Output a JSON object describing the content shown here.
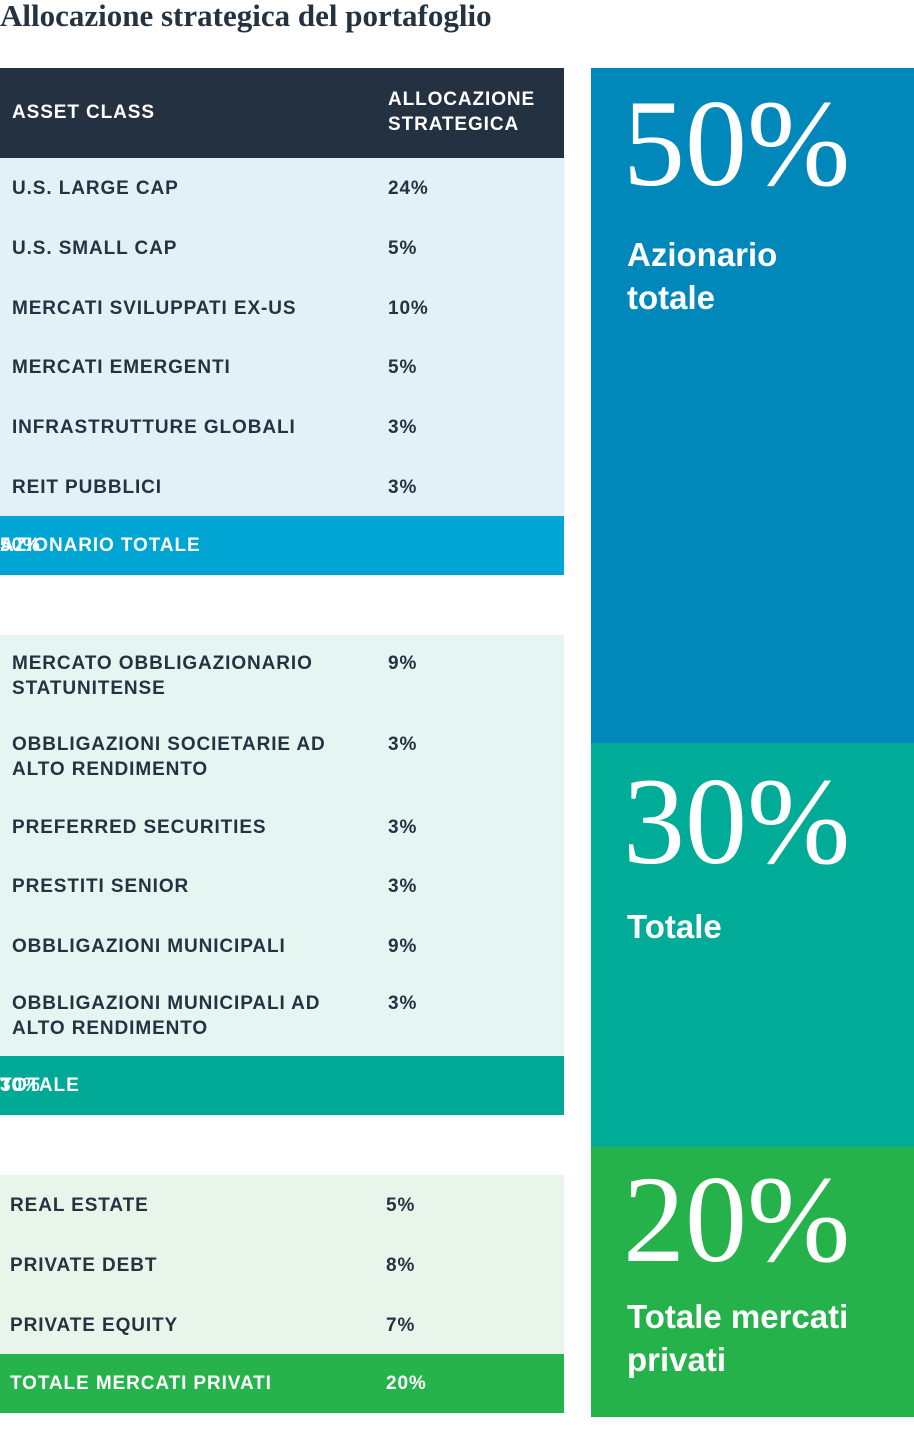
{
  "title": "Allocazione strategica del portafoglio",
  "header": {
    "col1": "ASSET CLASS",
    "col2": "ALLOCAZIONE\nSTRATEGICA"
  },
  "groups": [
    {
      "rows": [
        {
          "name": "U.S. LARGE CAP",
          "value": "24%"
        },
        {
          "name": "U.S. SMALL CAP",
          "value": "5%"
        },
        {
          "name": "MERCATI SVILUPPATI EX-US",
          "value": "10%"
        },
        {
          "name": "MERCATI EMERGENTI",
          "value": "5%"
        },
        {
          "name": "INFRASTRUTTURE GLOBALI",
          "value": "3%"
        },
        {
          "name": "REIT PUBBLICI",
          "value": "3%"
        }
      ],
      "total": {
        "name": "AZIONARIO TOTALE",
        "value": "50%"
      }
    },
    {
      "rows": [
        {
          "name": "MERCATO OBBLIGAZIONARIO\nSTATUNITENSE",
          "value": "9%"
        },
        {
          "name": "OBBLIGAZIONI SOCIETARIE AD\nALTO RENDIMENTO",
          "value": "3%"
        },
        {
          "name": "PREFERRED SECURITIES",
          "value": "3%"
        },
        {
          "name": "PRESTITI SENIOR",
          "value": "3%"
        },
        {
          "name": "OBBLIGAZIONI MUNICIPALI",
          "value": "9%"
        },
        {
          "name": "OBBLIGAZIONI MUNICIPALI AD\nALTO RENDIMENTO",
          "value": "3%"
        }
      ],
      "total": {
        "name": "TOTALE",
        "value": "30%"
      }
    },
    {
      "rows": [
        {
          "name": "REAL ESTATE",
          "value": "5%"
        },
        {
          "name": "PRIVATE DEBT",
          "value": "8%"
        },
        {
          "name": "PRIVATE EQUITY",
          "value": "7%"
        }
      ],
      "total": {
        "name": "TOTALE MERCATI PRIVATI",
        "value": "20%"
      }
    }
  ],
  "bars": [
    {
      "pct": "50%",
      "label": "Azionario\ntotale"
    },
    {
      "pct": "30%",
      "label": "Totale"
    },
    {
      "pct": "20%",
      "label": "Totale mercati\nprivati"
    }
  ],
  "chart_data": {
    "type": "table",
    "title": "Allocazione strategica del portafoglio",
    "columns": [
      "ASSET CLASS",
      "ALLOCAZIONE STRATEGICA"
    ],
    "rows": [
      [
        "U.S. LARGE CAP",
        24
      ],
      [
        "U.S. SMALL CAP",
        5
      ],
      [
        "MERCATI SVILUPPATI EX-US",
        10
      ],
      [
        "MERCATI EMERGENTI",
        5
      ],
      [
        "INFRASTRUTTURE GLOBALI",
        3
      ],
      [
        "REIT PUBBLICI",
        3
      ],
      [
        "AZIONARIO TOTALE",
        50
      ],
      [
        "MERCATO OBBLIGAZIONARIO STATUNITENSE",
        9
      ],
      [
        "OBBLIGAZIONI SOCIETARIE AD ALTO RENDIMENTO",
        3
      ],
      [
        "PREFERRED SECURITIES",
        3
      ],
      [
        "PRESTITI SENIOR",
        3
      ],
      [
        "OBBLIGAZIONI MUNICIPALI",
        9
      ],
      [
        "OBBLIGAZIONI MUNICIPALI AD ALTO RENDIMENTO",
        3
      ],
      [
        "TOTALE",
        30
      ],
      [
        "REAL ESTATE",
        5
      ],
      [
        "PRIVATE DEBT",
        8
      ],
      [
        "PRIVATE EQUITY",
        7
      ],
      [
        "TOTALE MERCATI PRIVATI",
        20
      ]
    ],
    "stacked_bar": {
      "categories": [
        "Azionario totale",
        "Totale",
        "Totale mercati privati"
      ],
      "values": [
        50,
        30,
        20
      ]
    }
  },
  "colors": {
    "header": "#243140",
    "equity_total": "#00a5d3",
    "equity_bg": "#e2f1f7",
    "fixed_total": "#00a896",
    "fixed_bg": "#e4f5f2",
    "private_total": "#27b34b",
    "private_bg": "#e8f5ea",
    "equity_bar": "#0088bb",
    "fixed_bar": "#00ac97",
    "private_bar": "#26b24b"
  }
}
